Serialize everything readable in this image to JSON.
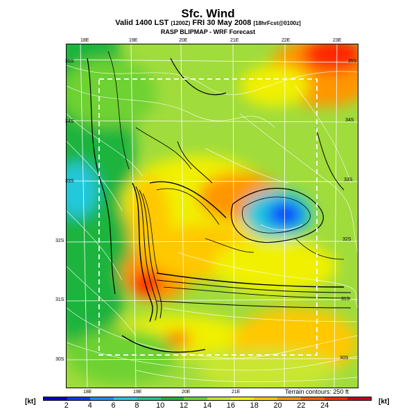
{
  "header": {
    "title": "Sfc. Wind",
    "valid_prefix": "Valid 1400 LST",
    "valid_small1": "(1200Z)",
    "valid_mid": "FRI 30 May 2008",
    "valid_small2": "[18hrFcst@0100z]",
    "subtitle": "RASP BLIPMAP - WRF Forecast"
  },
  "axes": {
    "lon_top": [
      "18E",
      "19E",
      "20E",
      "21E",
      "22E",
      "23E"
    ],
    "lon_bottom": [
      "18E",
      "19E",
      "20E",
      "21E"
    ],
    "lat_left": [
      "30S",
      "31S",
      "32S",
      "33S",
      "34S",
      "35S"
    ],
    "lat_right": [
      "30S",
      "31S",
      "32S",
      "33S",
      "34S",
      "35S"
    ]
  },
  "legend": {
    "contour_note": "Terrain contours: 250 ft",
    "unit_left": "[kt]",
    "unit_right": "[kt]",
    "ticks": [
      "2",
      "4",
      "6",
      "8",
      "10",
      "12",
      "14",
      "16",
      "18",
      "20",
      "22",
      "24"
    ],
    "colors": [
      "#0000cc",
      "#0a3cff",
      "#1e8cff",
      "#22c8dc",
      "#1ec88c",
      "#1eb43c",
      "#6ed232",
      "#c8e632",
      "#f0f000",
      "#ffc800",
      "#ff9600",
      "#ff5a00",
      "#ff2800",
      "#c8001e"
    ]
  }
}
